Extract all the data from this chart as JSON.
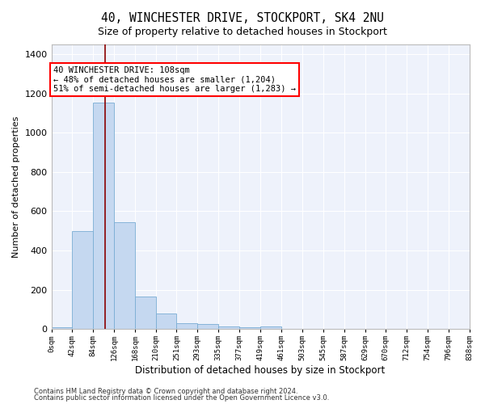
{
  "title": "40, WINCHESTER DRIVE, STOCKPORT, SK4 2NU",
  "subtitle": "Size of property relative to detached houses in Stockport",
  "xlabel": "Distribution of detached houses by size in Stockport",
  "ylabel": "Number of detached properties",
  "bar_color": "#c5d8f0",
  "bar_edge_color": "#7aadd4",
  "background_color": "#eef2fb",
  "grid_color": "#ffffff",
  "annotation_text": "40 WINCHESTER DRIVE: 108sqm\n← 48% of detached houses are smaller (1,204)\n51% of semi-detached houses are larger (1,283) →",
  "red_line_x": 108,
  "footer_line1": "Contains HM Land Registry data © Crown copyright and database right 2024.",
  "footer_line2": "Contains public sector information licensed under the Open Government Licence v3.0.",
  "bin_edges": [
    0,
    42,
    84,
    126,
    168,
    210,
    251,
    293,
    335,
    377,
    419,
    461,
    503,
    545,
    587,
    629,
    670,
    712,
    754,
    796,
    838
  ],
  "bin_counts": [
    10,
    500,
    1155,
    545,
    165,
    80,
    30,
    25,
    15,
    8,
    15,
    0,
    0,
    0,
    0,
    0,
    0,
    0,
    0,
    0
  ],
  "ylim": [
    0,
    1450
  ],
  "yticks": [
    0,
    200,
    400,
    600,
    800,
    1000,
    1200,
    1400
  ],
  "tick_labels": [
    "0sqm",
    "42sqm",
    "84sqm",
    "126sqm",
    "168sqm",
    "210sqm",
    "251sqm",
    "293sqm",
    "335sqm",
    "377sqm",
    "419sqm",
    "461sqm",
    "503sqm",
    "545sqm",
    "587sqm",
    "629sqm",
    "670sqm",
    "712sqm",
    "754sqm",
    "796sqm",
    "838sqm"
  ]
}
